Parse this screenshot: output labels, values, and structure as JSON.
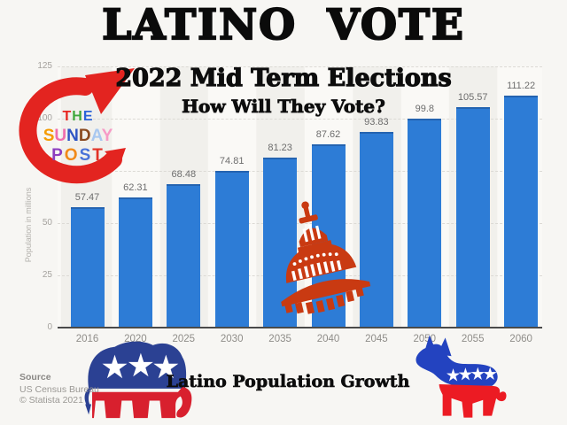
{
  "header": {
    "title": "LATINO VOTE",
    "subtitle": "2022 Mid Term Elections",
    "question": "How Will They Vote?"
  },
  "masthead": {
    "lines": [
      {
        "letters": [
          {
            "ch": "T",
            "color": "#e8251f"
          },
          {
            "ch": "H",
            "color": "#3fa83c"
          },
          {
            "ch": "E",
            "color": "#2b63d9"
          }
        ]
      },
      {
        "letters": [
          {
            "ch": "S",
            "color": "#f59b00"
          },
          {
            "ch": "U",
            "color": "#ef6fae"
          },
          {
            "ch": "N",
            "color": "#2d54c4"
          },
          {
            "ch": "D",
            "color": "#8a4a20"
          },
          {
            "ch": "A",
            "color": "#a9c8f0"
          },
          {
            "ch": "Y",
            "color": "#f79ac6"
          }
        ]
      },
      {
        "letters": [
          {
            "ch": "P",
            "color": "#8d3fc0"
          },
          {
            "ch": "O",
            "color": "#f18a18"
          },
          {
            "ch": "S",
            "color": "#4a72d8"
          },
          {
            "ch": "T",
            "color": "#e23226"
          }
        ]
      }
    ]
  },
  "chart_data": {
    "type": "bar",
    "categories": [
      "2016",
      "2020",
      "2025",
      "2030",
      "2035",
      "2040",
      "2045",
      "2050",
      "2055",
      "2060"
    ],
    "values": [
      57.47,
      62.31,
      68.48,
      74.81,
      81.23,
      87.62,
      93.83,
      99.8,
      105.57,
      111.22
    ],
    "title": "",
    "xlabel": "",
    "ylabel": "Population in millions",
    "ylim": [
      0,
      125
    ],
    "yticks": [
      0,
      25,
      50,
      75,
      100,
      125
    ],
    "grid": "horizontal-dashed",
    "legend": "none",
    "bar_color": "#2d7cd6"
  },
  "footer": {
    "caption": "Latino Population Growth",
    "source_label": "Source",
    "source_name": "US Census Bureau",
    "copyright": "© Statista 2021"
  },
  "colors": {
    "arrow_red": "#e32420",
    "capitol_red": "#c93a12",
    "elephant_blue": "#2b4193",
    "elephant_red": "#d8202e",
    "donkey_blue": "#2343c0",
    "donkey_red": "#ec1b23",
    "bar_blue": "#2d7cd6"
  }
}
